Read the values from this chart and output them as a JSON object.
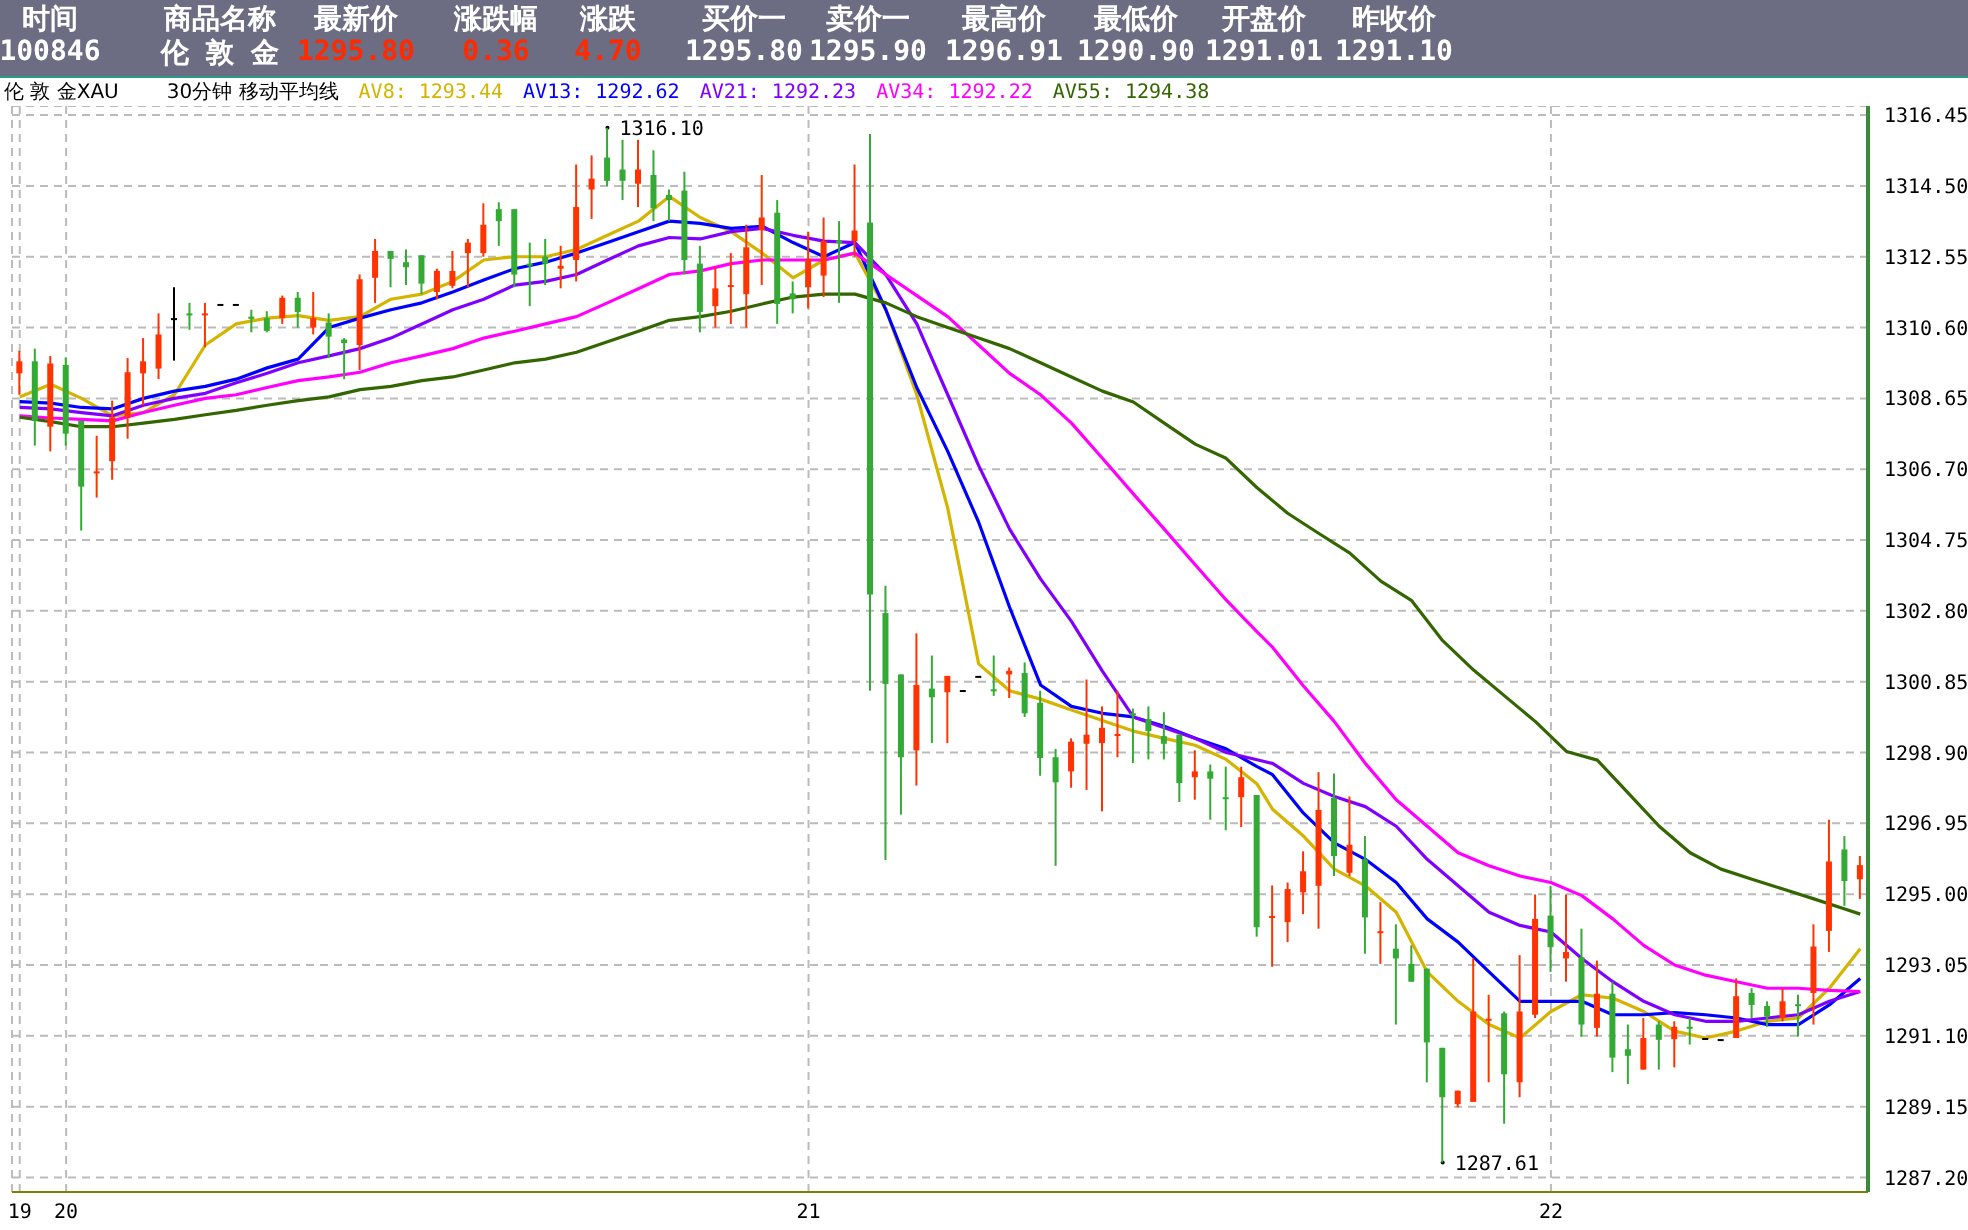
{
  "chart_data": {
    "type": "candlestick",
    "title": "伦 敦 金XAU",
    "subtitle": "30分钟 移动平均线",
    "annotations": [
      "时间",
      "商品名称",
      "最新价",
      "涨跌幅",
      "涨跌",
      "买价一",
      "卖价一",
      "最高价",
      "最低价",
      "开盘价",
      "昨收价",
      "100846",
      "伦 敦 金",
      "1295.80",
      "0.36",
      "4.70",
      "1295.80",
      "1295.90",
      "1296.91",
      "1290.90",
      "1291.01",
      "1291.10",
      "1316.10",
      "1287.61"
    ],
    "categories": [
      "19",
      null,
      null,
      "20",
      null,
      null,
      null,
      null,
      null,
      null,
      null,
      null,
      null,
      null,
      null,
      null,
      null,
      null,
      null,
      null,
      null,
      null,
      null,
      null,
      null,
      null,
      null,
      null,
      null,
      null,
      null,
      null,
      null,
      null,
      null,
      null,
      null,
      null,
      null,
      null,
      null,
      null,
      null,
      null,
      null,
      null,
      null,
      null,
      null,
      null,
      null,
      "21",
      null,
      null,
      null,
      null,
      null,
      null,
      null,
      null,
      null,
      null,
      null,
      null,
      null,
      null,
      null,
      null,
      null,
      null,
      null,
      null,
      null,
      null,
      null,
      null,
      null,
      null,
      null,
      null,
      null,
      null,
      null,
      null,
      null,
      null,
      null,
      null,
      null,
      null,
      null,
      null,
      null,
      null,
      null,
      null,
      null,
      null,
      null,
      "22",
      null,
      null,
      null,
      null,
      null,
      null,
      null,
      null,
      null,
      null,
      null,
      null,
      null,
      null,
      null,
      null,
      null,
      null,
      null,
      null
    ],
    "ohlc": [
      [
        1309.34,
        1309.96,
        1308.75,
        1309.67
      ],
      [
        1309.67,
        1310.02,
        1307.35,
        1308.03
      ],
      [
        1307.87,
        1309.82,
        1307.19,
        1309.61
      ],
      [
        1309.57,
        1309.78,
        1307.35,
        1307.68
      ],
      [
        1308.03,
        1308.03,
        1305.01,
        1306.22
      ],
      [
        1306.61,
        1307.62,
        1305.92,
        1306.64
      ],
      [
        1306.92,
        1308.59,
        1306.41,
        1308.13
      ],
      [
        1308.13,
        1309.76,
        1307.54,
        1309.37
      ],
      [
        1309.34,
        1310.31,
        1308.46,
        1309.67
      ],
      [
        1309.47,
        1310.99,
        1309.18,
        1310.41
      ],
      [
        1310.86,
        1311.71,
        1309.69,
        1310.86
      ],
      [
        1310.99,
        1311.28,
        1310.54,
        1310.95
      ],
      [
        1310.95,
        1311.28,
        1310.06,
        1310.99
      ],
      [
        1311.25,
        1311.25,
        1311.25,
        1311.25
      ],
      [
        1311.25,
        1311.25,
        1311.25,
        1311.25
      ],
      [
        1310.9,
        1311.09,
        1310.47,
        1310.84
      ],
      [
        1310.86,
        1311.05,
        1310.47,
        1310.51
      ],
      [
        1310.86,
        1311.48,
        1310.7,
        1311.42
      ],
      [
        1311.42,
        1311.58,
        1310.6,
        1311.03
      ],
      [
        1310.6,
        1311.58,
        1310.41,
        1310.86
      ],
      [
        1310.74,
        1310.99,
        1309.76,
        1310.35
      ],
      [
        1310.27,
        1310.31,
        1309.18,
        1310.17
      ],
      [
        1310.12,
        1312.06,
        1309.43,
        1311.93
      ],
      [
        1311.97,
        1313.04,
        1311.28,
        1312.71
      ],
      [
        1312.71,
        1312.71,
        1311.71,
        1312.49
      ],
      [
        1312.4,
        1312.75,
        1311.77,
        1312.26
      ],
      [
        1312.59,
        1312.59,
        1311.52,
        1311.81
      ],
      [
        1311.58,
        1312.22,
        1311.38,
        1312.16
      ],
      [
        1311.75,
        1312.71,
        1311.68,
        1312.16
      ],
      [
        1312.65,
        1313.04,
        1311.71,
        1312.94
      ],
      [
        1312.65,
        1314.02,
        1312.55,
        1313.43
      ],
      [
        1313.86,
        1314.05,
        1312.85,
        1313.53
      ],
      [
        1313.86,
        1313.86,
        1311.71,
        1312.06
      ],
      [
        1312.36,
        1312.94,
        1311.19,
        1312.3
      ],
      [
        1312.55,
        1313.04,
        1311.77,
        1312.36
      ],
      [
        1312.22,
        1312.85,
        1311.68,
        1312.3
      ],
      [
        1312.46,
        1315.09,
        1311.87,
        1313.92
      ],
      [
        1314.4,
        1315.34,
        1313.59,
        1314.7
      ],
      [
        1315.28,
        1316.1,
        1314.5,
        1314.64
      ],
      [
        1314.95,
        1315.77,
        1314.11,
        1314.64
      ],
      [
        1314.56,
        1315.77,
        1313.92,
        1314.95
      ],
      [
        1314.8,
        1315.48,
        1313.53,
        1313.88
      ],
      [
        1314.25,
        1314.4,
        1313.53,
        1314.11
      ],
      [
        1314.37,
        1314.89,
        1312.06,
        1312.46
      ],
      [
        1312.36,
        1312.85,
        1310.47,
        1311.03
      ],
      [
        1311.19,
        1312.26,
        1310.6,
        1311.68
      ],
      [
        1311.74,
        1312.65,
        1310.7,
        1311.77
      ],
      [
        1311.52,
        1313.43,
        1310.6,
        1312.81
      ],
      [
        1313.29,
        1314.8,
        1311.77,
        1313.63
      ],
      [
        1313.76,
        1314.11,
        1310.7,
        1311.25
      ],
      [
        1311.54,
        1311.87,
        1310.99,
        1311.38
      ],
      [
        1311.71,
        1313.24,
        1311.13,
        1312.49
      ],
      [
        1312.03,
        1313.63,
        1311.44,
        1312.98
      ],
      [
        1313.0,
        1313.53,
        1311.28,
        1312.92
      ],
      [
        1312.98,
        1315.09,
        1312.55,
        1313.27
      ],
      [
        1313.49,
        1315.93,
        1300.6,
        1303.25
      ],
      [
        1302.74,
        1303.49,
        1295.94,
        1300.79
      ],
      [
        1301.05,
        1301.05,
        1297.19,
        1298.77
      ],
      [
        1298.96,
        1302.18,
        1297.99,
        1300.76
      ],
      [
        1300.66,
        1301.57,
        1299.16,
        1300.42
      ],
      [
        1300.56,
        1301.01,
        1299.16,
        1301.01
      ],
      [
        1300.62,
        1300.62,
        1300.62,
        1300.62
      ],
      [
        1301.01,
        1301.01,
        1301.01,
        1301.01
      ],
      [
        1300.64,
        1301.57,
        1300.46,
        1300.6
      ],
      [
        1301.05,
        1301.24,
        1300.4,
        1301.15
      ],
      [
        1301.09,
        1301.38,
        1299.88,
        1299.98
      ],
      [
        1300.27,
        1300.6,
        1298.26,
        1298.75
      ],
      [
        1298.77,
        1299.0,
        1295.78,
        1298.08
      ],
      [
        1298.38,
        1299.29,
        1297.93,
        1299.2
      ],
      [
        1299.14,
        1300.91,
        1297.87,
        1299.39
      ],
      [
        1299.16,
        1300.17,
        1297.28,
        1299.58
      ],
      [
        1299.37,
        1300.6,
        1298.77,
        1299.41
      ],
      [
        1299.98,
        1300.11,
        1298.61,
        1299.92
      ],
      [
        1299.82,
        1300.17,
        1298.71,
        1299.49
      ],
      [
        1299.35,
        1300.01,
        1298.71,
        1299.14
      ],
      [
        1299.39,
        1299.39,
        1297.54,
        1298.06
      ],
      [
        1298.22,
        1298.96,
        1297.6,
        1298.38
      ],
      [
        1298.38,
        1298.57,
        1297.05,
        1298.18
      ],
      [
        1297.67,
        1298.51,
        1296.76,
        1297.63
      ],
      [
        1297.67,
        1298.51,
        1296.85,
        1298.22
      ],
      [
        1297.73,
        1297.73,
        1293.83,
        1294.09
      ],
      [
        1294.36,
        1295.24,
        1293.0,
        1294.4
      ],
      [
        1294.23,
        1295.32,
        1293.68,
        1295.14
      ],
      [
        1295.05,
        1296.18,
        1294.45,
        1295.63
      ],
      [
        1295.23,
        1298.36,
        1294.05,
        1297.32
      ],
      [
        1297.65,
        1298.32,
        1295.5,
        1296.05
      ],
      [
        1295.59,
        1297.69,
        1295.5,
        1296.36
      ],
      [
        1295.96,
        1296.6,
        1293.36,
        1294.36
      ],
      [
        1293.94,
        1294.78,
        1293.08,
        1293.98
      ],
      [
        1293.5,
        1294.17,
        1291.41,
        1293.23
      ],
      [
        1293.08,
        1293.59,
        1292.59,
        1292.59
      ],
      [
        1292.95,
        1292.95,
        1289.82,
        1290.92
      ],
      [
        1290.77,
        1290.77,
        1287.61,
        1289.41
      ],
      [
        1289.22,
        1289.59,
        1289.13,
        1289.59
      ],
      [
        1289.28,
        1293.23,
        1289.28,
        1291.77
      ],
      [
        1291.53,
        1292.23,
        1289.82,
        1291.57
      ],
      [
        1291.72,
        1291.77,
        1288.68,
        1290.04
      ],
      [
        1289.82,
        1293.32,
        1289.41,
        1291.77
      ],
      [
        1291.68,
        1294.99,
        1291.59,
        1294.32
      ],
      [
        1294.41,
        1295.23,
        1292.86,
        1293.54
      ],
      [
        1293.23,
        1294.99,
        1292.59,
        1293.41
      ],
      [
        1293.26,
        1294.05,
        1291.08,
        1291.41
      ],
      [
        1291.32,
        1293.17,
        1291.08,
        1292.26
      ],
      [
        1292.26,
        1292.59,
        1290.1,
        1290.5
      ],
      [
        1290.73,
        1291.41,
        1289.77,
        1290.55
      ],
      [
        1290.17,
        1291.59,
        1290.17,
        1291.04
      ],
      [
        1291.41,
        1291.5,
        1290.17,
        1290.99
      ],
      [
        1291.01,
        1291.5,
        1290.23,
        1291.35
      ],
      [
        1291.35,
        1291.59,
        1290.86,
        1291.32
      ],
      [
        1291.04,
        1291.04,
        1291.04,
        1291.04
      ],
      [
        1291.01,
        1291.01,
        1291.01,
        1291.01
      ],
      [
        1291.04,
        1292.68,
        1291.04,
        1292.19
      ],
      [
        1292.28,
        1292.41,
        1291.59,
        1291.95
      ],
      [
        1291.92,
        1292.05,
        1291.35,
        1291.63
      ],
      [
        1291.59,
        1292.41,
        1291.5,
        1292.05
      ],
      [
        1291.97,
        1292.23,
        1291.08,
        1291.93
      ],
      [
        1292.28,
        1294.17,
        1291.41,
        1293.56
      ],
      [
        1293.99,
        1297.05,
        1293.41,
        1295.9
      ],
      [
        1296.23,
        1296.6,
        1294.68,
        1295.36
      ],
      [
        1295.41,
        1296.05,
        1294.87,
        1295.8
      ]
    ],
    "colors": [
      "#ff3300",
      "#33aa33",
      "#ff3300",
      "#33aa33",
      "#33aa33",
      "#ff3300",
      "#ff3300",
      "#ff3300",
      "#ff3300",
      "#ff3300",
      "#000000",
      "#33aa33",
      "#ff3300",
      "#000000",
      "#000000",
      "#33aa33",
      "#33aa33",
      "#ff3300",
      "#33aa33",
      "#ff3300",
      "#33aa33",
      "#33aa33",
      "#ff3300",
      "#ff3300",
      "#33aa33",
      "#33aa33",
      "#33aa33",
      "#ff3300",
      "#ff3300",
      "#ff3300",
      "#ff3300",
      "#33aa33",
      "#33aa33",
      "#33aa33",
      "#33aa33",
      "#ff3300",
      "#ff3300",
      "#ff3300",
      "#33aa33",
      "#33aa33",
      "#ff3300",
      "#33aa33",
      "#33aa33",
      "#33aa33",
      "#33aa33",
      "#ff3300",
      "#ff3300",
      "#ff3300",
      "#ff3300",
      "#33aa33",
      "#33aa33",
      "#ff3300",
      "#ff3300",
      "#33aa33",
      "#ff3300",
      "#33aa33",
      "#33aa33",
      "#33aa33",
      "#ff3300",
      "#33aa33",
      "#ff3300",
      "#000000",
      "#000000",
      "#33aa33",
      "#ff3300",
      "#33aa33",
      "#33aa33",
      "#33aa33",
      "#ff3300",
      "#ff3300",
      "#ff3300",
      "#ff3300",
      "#33aa33",
      "#33aa33",
      "#33aa33",
      "#33aa33",
      "#ff3300",
      "#33aa33",
      "#33aa33",
      "#ff3300",
      "#33aa33",
      "#ff3300",
      "#ff3300",
      "#ff3300",
      "#ff3300",
      "#33aa33",
      "#ff3300",
      "#33aa33",
      "#ff3300",
      "#33aa33",
      "#33aa33",
      "#33aa33",
      "#33aa33",
      "#ff3300",
      "#ff3300",
      "#ff3300",
      "#33aa33",
      "#ff3300",
      "#ff3300",
      "#33aa33",
      "#ff3300",
      "#33aa33",
      "#ff3300",
      "#33aa33",
      "#33aa33",
      "#ff3300",
      "#33aa33",
      "#ff3300",
      "#33aa33",
      "#000000",
      "#000000",
      "#ff3300",
      "#33aa33",
      "#33aa33",
      "#ff3300",
      "#33aa33",
      "#ff3300",
      "#ff3300",
      "#33aa33",
      "#ff3300"
    ],
    "series": [
      {
        "name": "AV8: 1293.44",
        "color": "#d4b400",
        "type": "line",
        "values": [
          1308.69,
          null,
          1309.04,
          null,
          1308.65,
          null,
          1308.17,
          null,
          1308.26,
          null,
          1308.75,
          null,
          1310.12,
          null,
          1310.7,
          null,
          1310.86,
          null,
          1310.93,
          null,
          1310.8,
          null,
          1310.9,
          null,
          1311.38,
          null,
          1311.52,
          null,
          1311.87,
          null,
          1312.46,
          null,
          1312.55,
          null,
          1312.55,
          null,
          1312.75,
          null,
          1313.14,
          null,
          1313.53,
          null,
          1314.21,
          null,
          1313.63,
          null,
          1313.24,
          null,
          1312.65,
          null,
          1311.97,
          null,
          1312.46,
          null,
          1312.65,
          null,
          1311.09,
          null,
          1308.75,
          null,
          1305.63,
          null,
          1301.34,
          null,
          1300.6,
          null,
          1300.37,
          null,
          1300.07,
          null,
          1299.78,
          null,
          1299.49,
          null,
          1299.29,
          null,
          1299.1,
          null,
          1298.71,
          null,
          1298.03,
          1297.34,
          null,
          1296.6,
          null,
          1295.69,
          null,
          1295.23,
          null,
          1294.5,
          null,
          1292.86,
          null,
          1292.05,
          null,
          1291.41,
          null,
          1291.04,
          null,
          1291.77,
          null,
          1292.23,
          null,
          1292.14,
          null,
          1291.77,
          null,
          1291.23,
          null,
          1291.04,
          null,
          1291.23,
          null,
          1291.5,
          null,
          1291.59,
          null,
          1292.41,
          null,
          1293.5
        ]
      },
      {
        "name": "AV13: 1292.62",
        "color": "#0000ff",
        "type": "line",
        "values": [
          1308.56,
          null,
          1308.52,
          null,
          1308.4,
          null,
          1308.36,
          null,
          1308.65,
          null,
          1308.85,
          null,
          1308.98,
          null,
          1309.18,
          null,
          1309.49,
          null,
          1309.73,
          null,
          1310.6,
          null,
          1310.86,
          null,
          1311.09,
          null,
          1311.28,
          null,
          1311.58,
          null,
          1311.91,
          null,
          1312.22,
          null,
          1312.4,
          null,
          1312.65,
          null,
          1312.94,
          null,
          1313.24,
          null,
          1313.53,
          null,
          1313.47,
          null,
          1313.33,
          null,
          1313.39,
          null,
          1312.94,
          null,
          1312.55,
          null,
          1312.94,
          null,
          1311.09,
          null,
          1308.95,
          null,
          1307.19,
          null,
          1305.24,
          null,
          1302.9,
          null,
          1300.76,
          null,
          1300.17,
          null,
          1299.98,
          null,
          1299.88,
          null,
          1299.62,
          null,
          1299.29,
          null,
          1299.0,
          null,
          1298.51,
          1298.29,
          null,
          1297.23,
          null,
          1296.41,
          null,
          1295.96,
          null,
          1295.32,
          null,
          1294.32,
          null,
          1293.68,
          null,
          1292.86,
          null,
          1292.05,
          null,
          1292.05,
          null,
          1292.05,
          null,
          1291.68,
          null,
          1291.68,
          null,
          1291.74,
          null,
          1291.68,
          null,
          1291.59,
          null,
          1291.41,
          null,
          1291.41,
          null,
          1291.95,
          null,
          1292.68
        ]
      },
      {
        "name": "AV21: 1292.23",
        "color": "#8000ff",
        "type": "line",
        "values": [
          1308.4,
          null,
          1308.36,
          null,
          1308.26,
          null,
          1308.17,
          null,
          1308.46,
          null,
          1308.65,
          null,
          1308.79,
          null,
          1309.08,
          null,
          1309.34,
          null,
          1309.63,
          null,
          1309.82,
          null,
          1310.02,
          null,
          1310.31,
          null,
          1310.7,
          null,
          1311.09,
          null,
          1311.38,
          null,
          1311.77,
          null,
          1311.87,
          null,
          1312.06,
          null,
          1312.46,
          null,
          1312.85,
          null,
          1313.08,
          null,
          1313.04,
          null,
          1313.24,
          null,
          1313.33,
          null,
          1313.14,
          null,
          1312.98,
          null,
          1312.94,
          null,
          1312.06,
          null,
          1310.7,
          null,
          1308.75,
          null,
          1306.8,
          null,
          1305.05,
          null,
          1303.68,
          null,
          1302.51,
          null,
          1301.14,
          null,
          1299.88,
          null,
          1299.58,
          null,
          1299.29,
          null,
          1298.9,
          null,
          1298.7,
          1298.6,
          null,
          1298.05,
          null,
          1297.69,
          null,
          1297.41,
          null,
          1296.87,
          null,
          1295.96,
          null,
          1295.23,
          null,
          1294.5,
          null,
          1294.14,
          null,
          1293.96,
          null,
          1293.23,
          null,
          1292.59,
          null,
          1292.05,
          null,
          1291.68,
          null,
          1291.5,
          null,
          1291.5,
          null,
          1291.59,
          null,
          1291.68,
          null,
          1292.05,
          null,
          1292.32
        ]
      },
      {
        "name": "AV34: 1292.22",
        "color": "#ff00ff",
        "type": "line",
        "values": [
          1308.17,
          null,
          1308.11,
          null,
          1308.07,
          null,
          1308.03,
          null,
          1308.26,
          null,
          1308.46,
          null,
          1308.65,
          null,
          1308.75,
          null,
          1308.95,
          null,
          1309.14,
          null,
          1309.24,
          null,
          1309.37,
          null,
          1309.63,
          null,
          1309.82,
          null,
          1310.02,
          null,
          1310.31,
          null,
          1310.5,
          null,
          1310.7,
          null,
          1310.9,
          null,
          1311.28,
          null,
          1311.67,
          null,
          1312.06,
          null,
          1312.16,
          null,
          1312.36,
          null,
          1312.46,
          null,
          1312.46,
          null,
          1312.46,
          null,
          1312.65,
          null,
          1312.06,
          null,
          1311.48,
          null,
          1310.9,
          null,
          1310.12,
          null,
          1309.34,
          null,
          1308.75,
          null,
          1307.97,
          null,
          1307.0,
          null,
          1306.02,
          null,
          1305.05,
          null,
          1304.07,
          null,
          1303.1,
          null,
          1302.22,
          1301.8,
          null,
          1300.73,
          null,
          1299.75,
          null,
          1298.6,
          null,
          1297.6,
          null,
          1296.87,
          null,
          1296.14,
          null,
          1295.78,
          null,
          1295.5,
          null,
          1295.32,
          null,
          1294.96,
          null,
          1294.32,
          null,
          1293.59,
          null,
          1293.05,
          null,
          1292.77,
          null,
          1292.59,
          null,
          1292.41,
          null,
          1292.41,
          null,
          1292.35,
          null,
          1292.32
        ]
      },
      {
        "name": "AV55: 1294.38",
        "color": "#336600",
        "type": "line",
        "values": [
          1308.13,
          null,
          1308.01,
          null,
          1307.87,
          null,
          1307.87,
          null,
          1307.97,
          null,
          1308.07,
          null,
          1308.2,
          null,
          1308.32,
          null,
          1308.46,
          null,
          1308.59,
          null,
          1308.69,
          null,
          1308.89,
          null,
          1308.98,
          null,
          1309.14,
          null,
          1309.24,
          null,
          1309.43,
          null,
          1309.63,
          null,
          1309.73,
          null,
          1309.92,
          null,
          1310.21,
          null,
          1310.5,
          null,
          1310.8,
          null,
          1310.9,
          null,
          1311.05,
          null,
          1311.25,
          null,
          1311.44,
          null,
          1311.52,
          null,
          1311.52,
          null,
          1311.28,
          null,
          1310.9,
          null,
          1310.6,
          null,
          1310.31,
          null,
          1310.02,
          null,
          1309.63,
          null,
          1309.24,
          null,
          1308.85,
          null,
          1308.55,
          null,
          1307.97,
          null,
          1307.39,
          null,
          1307.0,
          null,
          1306.19,
          null,
          1305.48,
          null,
          1304.93,
          null,
          1304.39,
          null,
          1303.62,
          null,
          1303.08,
          null,
          1301.98,
          null,
          1301.17,
          null,
          1300.46,
          null,
          1299.75,
          null,
          1298.93,
          null,
          1298.69,
          null,
          1297.78,
          null,
          1296.87,
          null,
          1296.14,
          null,
          1295.69,
          null,
          1295.41,
          null,
          1295.14,
          null,
          1294.87,
          null,
          1294.59,
          1294.45
        ]
      }
    ],
    "ylim": [
      1286.8,
      1316.7
    ],
    "yticks": [
      1316.45,
      {
        "value": 1314.5,
        "label": "1314.50"
      },
      1312.55,
      {
        "value": 1310.6,
        "label": "1310.60"
      },
      1308.65,
      {
        "value": 1306.7,
        "label": "1306.70"
      },
      1304.75,
      {
        "value": 1302.8,
        "label": "1302.80"
      },
      1300.85,
      {
        "value": 1298.9,
        "label": "1298.90"
      },
      1296.95,
      {
        "value": 1295,
        "label": "1295.00"
      },
      1293.05,
      {
        "value": 1291.1,
        "label": "1291.10"
      },
      1289.15,
      {
        "value": 1287.2,
        "label": "1287.20"
      }
    ],
    "grid": true,
    "legend": "top left"
  }
}
